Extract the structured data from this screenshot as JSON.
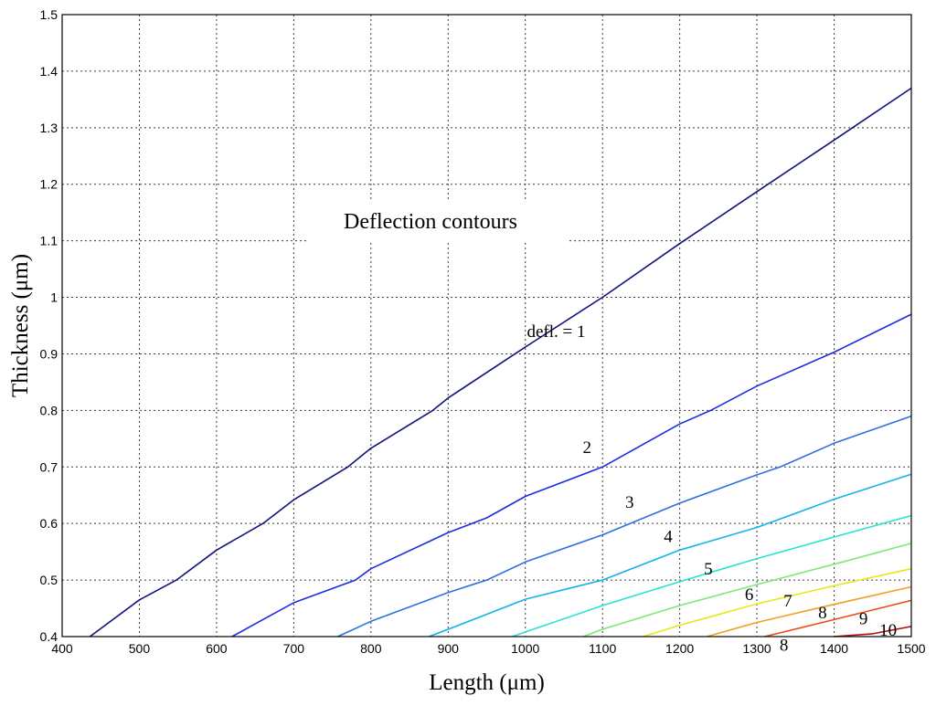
{
  "chart_data": {
    "type": "line",
    "title": "",
    "annotation": "Deflection contours",
    "xlabel": "Length (μm)",
    "ylabel": "Thickness (μm)",
    "xlim": [
      400,
      1500
    ],
    "ylim": [
      0.4,
      1.5
    ],
    "xticks": [
      400,
      500,
      600,
      700,
      800,
      900,
      1000,
      1100,
      1200,
      1300,
      1400,
      1500
    ],
    "yticks": [
      0.4,
      0.5,
      0.6,
      0.7,
      0.8,
      0.9,
      1,
      1.1,
      1.2,
      1.3,
      1.4,
      1.5
    ],
    "ytick_labels": [
      "0.4",
      "0.5",
      "0.6",
      "0.7",
      "0.8",
      "0.9",
      "1",
      "1.1",
      "1.2",
      "1.3",
      "1.4",
      "1.5"
    ],
    "grid": true,
    "series": [
      {
        "label": "defl. = 1",
        "color": "#10127f",
        "label_at": [
          1040,
          0.93
        ],
        "x": [
          436,
          500,
          548,
          600,
          660,
          700,
          770,
          800,
          880,
          900,
          1000,
          1100,
          1200,
          1300,
          1400,
          1500
        ],
        "y": [
          0.4,
          0.465,
          0.5,
          0.553,
          0.6,
          0.642,
          0.7,
          0.733,
          0.8,
          0.822,
          0.912,
          1.0,
          1.095,
          1.187,
          1.278,
          1.37
        ]
      },
      {
        "label": "2",
        "color": "#1c2ee0",
        "label_at": [
          1080,
          0.725
        ],
        "x": [
          620,
          660,
          700,
          780,
          800,
          900,
          950,
          1000,
          1100,
          1200,
          1240,
          1300,
          1400,
          1500
        ],
        "y": [
          0.4,
          0.43,
          0.46,
          0.5,
          0.52,
          0.584,
          0.61,
          0.648,
          0.7,
          0.776,
          0.8,
          0.843,
          0.903,
          0.97
        ]
      },
      {
        "label": "3",
        "color": "#2e6fe0",
        "label_at": [
          1135,
          0.628
        ],
        "x": [
          757,
          800,
          900,
          950,
          1000,
          1100,
          1200,
          1300,
          1330,
          1400,
          1500
        ],
        "y": [
          0.4,
          0.427,
          0.478,
          0.5,
          0.532,
          0.58,
          0.636,
          0.686,
          0.7,
          0.742,
          0.79
        ]
      },
      {
        "label": "4",
        "color": "#12b4e8",
        "label_at": [
          1185,
          0.567
        ],
        "x": [
          875,
          900,
          1000,
          1100,
          1200,
          1300,
          1400,
          1500
        ],
        "y": [
          0.4,
          0.413,
          0.466,
          0.5,
          0.553,
          0.593,
          0.643,
          0.687
        ]
      },
      {
        "label": "5",
        "color": "#29e2d2",
        "label_at": [
          1237,
          0.51
        ],
        "x": [
          983,
          1000,
          1100,
          1200,
          1300,
          1400,
          1500
        ],
        "y": [
          0.4,
          0.408,
          0.455,
          0.497,
          0.538,
          0.576,
          0.614
        ]
      },
      {
        "label": "6",
        "color": "#7fe87a",
        "label_at": [
          1290,
          0.465
        ],
        "x": [
          1075,
          1100,
          1200,
          1300,
          1400,
          1500
        ],
        "y": [
          0.4,
          0.413,
          0.455,
          0.492,
          0.528,
          0.565
        ]
      },
      {
        "label": "7",
        "color": "#e8e818",
        "label_at": [
          1340,
          0.453
        ],
        "x": [
          1153,
          1200,
          1300,
          1400,
          1500
        ],
        "y": [
          0.4,
          0.42,
          0.458,
          0.49,
          0.52
        ]
      },
      {
        "label": "8",
        "color": "#f0a020",
        "label_at": [
          1385,
          0.432
        ],
        "x": [
          1235,
          1300,
          1400,
          1500
        ],
        "y": [
          0.4,
          0.425,
          0.457,
          0.488
        ]
      },
      {
        "label": "9",
        "color": "#ee4a18",
        "label_at": [
          1438,
          0.422
        ],
        "x": [
          1310,
          1400,
          1500
        ],
        "y": [
          0.4,
          0.43,
          0.464
        ]
      },
      {
        "label": "10",
        "color": "#b00f0f",
        "label_at": [
          1470,
          0.402
        ],
        "x": [
          1400,
          1450,
          1500
        ],
        "y": [
          0.4,
          0.405,
          0.418
        ]
      }
    ],
    "extra_labels": [
      {
        "text": "8",
        "at": [
          1335,
          0.375
        ]
      }
    ]
  }
}
